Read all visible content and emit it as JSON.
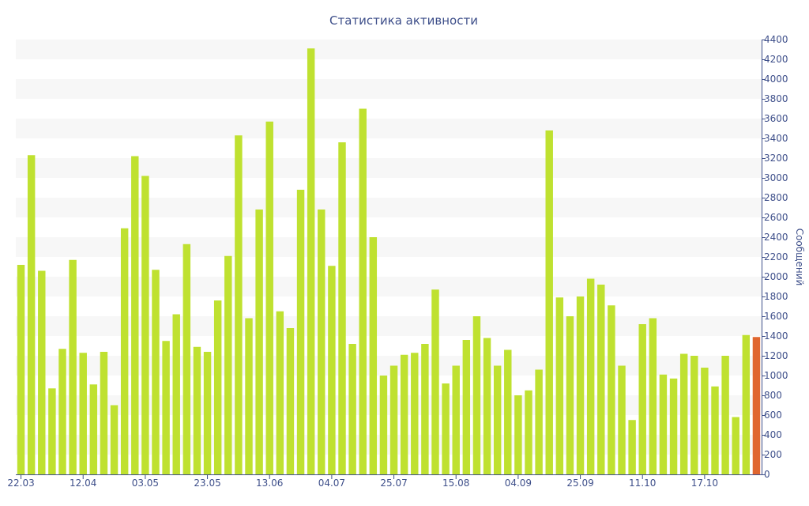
{
  "chart_data": {
    "type": "bar",
    "title": "Статистика активности",
    "xlabel": "",
    "ylabel": "Сообщений",
    "ylim": [
      0,
      4400
    ],
    "y_ticks": [
      0,
      200,
      400,
      600,
      800,
      1000,
      1200,
      1400,
      1600,
      1800,
      2000,
      2200,
      2400,
      2600,
      2800,
      3000,
      3200,
      3400,
      3600,
      3800,
      4000,
      4200,
      4400
    ],
    "x_tick_labels": [
      {
        "label": "22.03",
        "index": 0
      },
      {
        "label": "12.04",
        "index": 6
      },
      {
        "label": "03.05",
        "index": 12
      },
      {
        "label": "23.05",
        "index": 18
      },
      {
        "label": "13.06",
        "index": 24
      },
      {
        "label": "04.07",
        "index": 30
      },
      {
        "label": "25.07",
        "index": 36
      },
      {
        "label": "15.08",
        "index": 42
      },
      {
        "label": "04.09",
        "index": 48
      },
      {
        "label": "25.09",
        "index": 54
      },
      {
        "label": "11.10",
        "index": 60
      },
      {
        "label": "17.10",
        "index": 66
      }
    ],
    "values": [
      2120,
      3230,
      2060,
      870,
      1270,
      2170,
      1230,
      910,
      1240,
      700,
      2490,
      3220,
      3020,
      2070,
      1350,
      1620,
      2330,
      1290,
      1240,
      1760,
      2210,
      3430,
      1580,
      2680,
      3570,
      1650,
      1480,
      2880,
      4310,
      2680,
      2110,
      3360,
      1320,
      3700,
      2400,
      1000,
      1100,
      1210,
      1230,
      1320,
      1870,
      920,
      1100,
      1360,
      1600,
      1380,
      1100,
      1260,
      800,
      850,
      1060,
      3480,
      1790,
      1600,
      1800,
      1980,
      1920,
      1710,
      1100,
      550,
      1520,
      1580,
      1010,
      970,
      1220,
      1200,
      1080,
      890,
      1200,
      580,
      1410,
      1390
    ],
    "highlight_index": 71,
    "grid": true,
    "legend": "none",
    "colors": {
      "bar": "#bfe130",
      "bar_highlight": "#e0662f",
      "band": "#f7f7f7",
      "axis": "#3e4f8a",
      "text": "#3e4f8a"
    }
  }
}
